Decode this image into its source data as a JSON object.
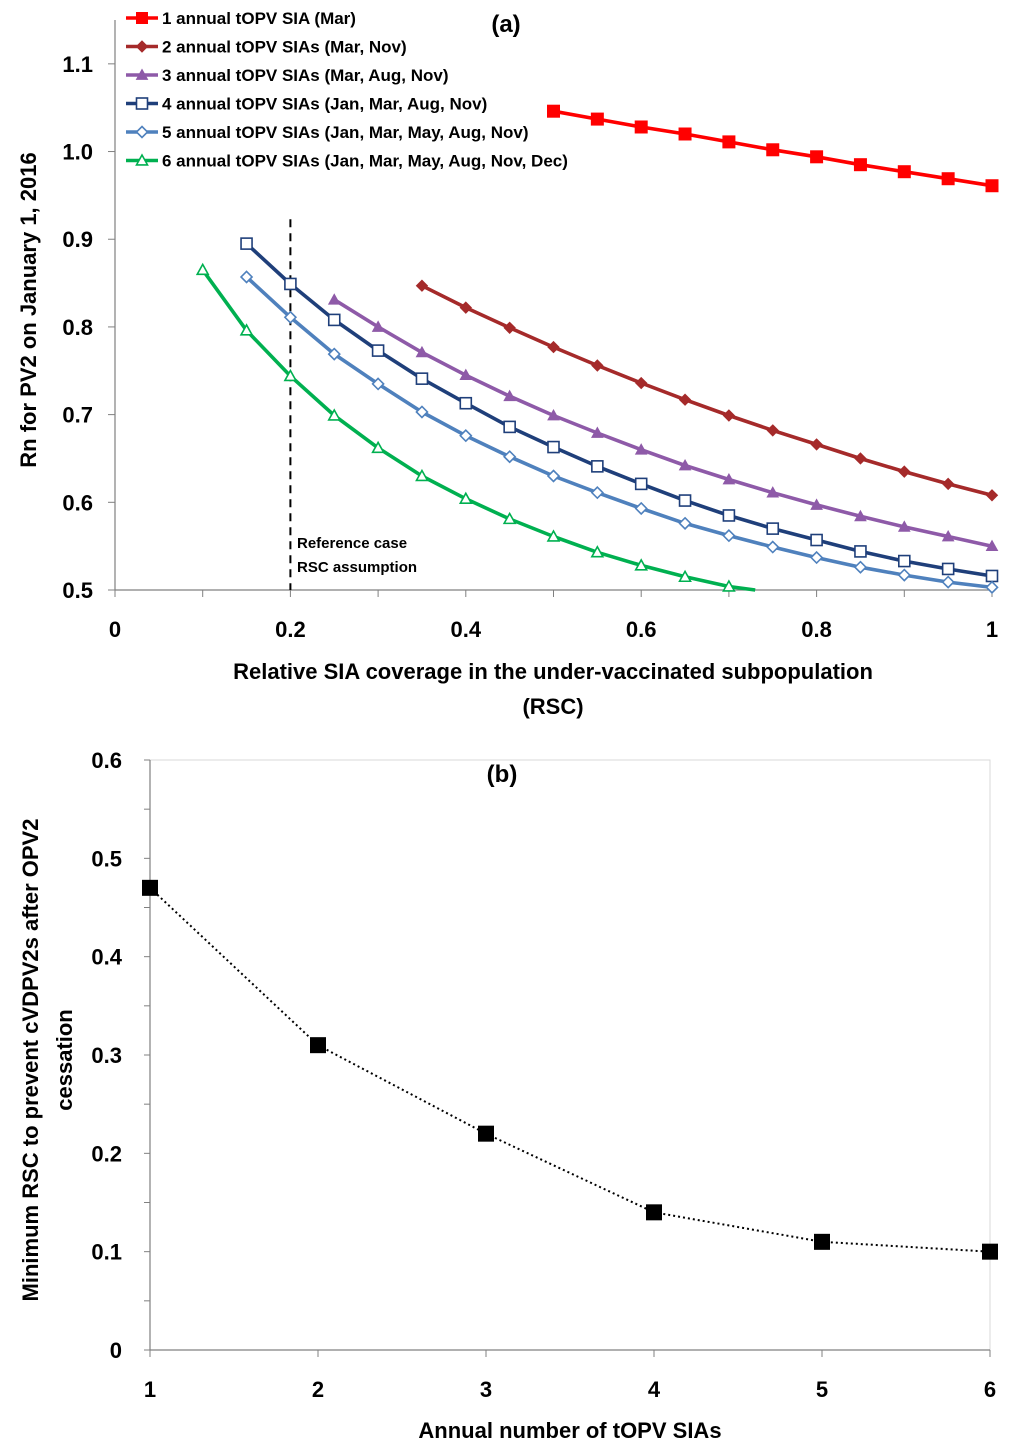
{
  "chart_data": [
    {
      "type": "line",
      "panel_label": "(a)",
      "xlabel_lines": [
        "Relative SIA coverage in the under-vaccinated subpopulation",
        "(RSC)"
      ],
      "ylabel": "Rn for PV2 on January 1, 2016",
      "xlim": [
        0,
        1
      ],
      "ylim": [
        0.5,
        1.15
      ],
      "x_ticks": [
        0,
        0.2,
        0.4,
        0.6,
        0.8,
        1
      ],
      "x_tick_labels": [
        "0",
        "0.2",
        "0.4",
        "0.6",
        "0.8",
        "1"
      ],
      "y_ticks": [
        0.5,
        0.6,
        0.7,
        0.8,
        0.9,
        1.0,
        1.1
      ],
      "y_tick_labels": [
        "0.5",
        "0.6",
        "0.7",
        "0.8",
        "0.9",
        "1.0",
        "1.1"
      ],
      "grid": false,
      "legend_position": "top-left",
      "annotation": {
        "x": 0.2,
        "lines": [
          "Reference case",
          "RSC assumption"
        ],
        "style": "dashed vertical line"
      },
      "series": [
        {
          "name": "1 annual tOPV SIA (Mar)",
          "color": "#ff0000",
          "marker": "filled-square",
          "x": [
            0.5,
            0.55,
            0.6,
            0.65,
            0.7,
            0.75,
            0.8,
            0.85,
            0.9,
            0.95,
            1.0
          ],
          "y": [
            1.046,
            1.037,
            1.028,
            1.02,
            1.011,
            1.002,
            0.994,
            0.985,
            0.977,
            0.969,
            0.961
          ]
        },
        {
          "name": "2 annual tOPV SIAs (Mar, Nov)",
          "color": "#a52a2a",
          "marker": "filled-diamond",
          "x": [
            0.35,
            0.4,
            0.45,
            0.5,
            0.55,
            0.6,
            0.65,
            0.7,
            0.75,
            0.8,
            0.85,
            0.9,
            0.95,
            1.0
          ],
          "y": [
            0.847,
            0.822,
            0.799,
            0.777,
            0.756,
            0.736,
            0.717,
            0.699,
            0.682,
            0.666,
            0.65,
            0.635,
            0.621,
            0.608
          ]
        },
        {
          "name": "3 annual tOPV SIAs (Mar, Aug, Nov)",
          "color": "#8e5aa8",
          "marker": "filled-triangle",
          "x": [
            0.25,
            0.3,
            0.35,
            0.4,
            0.45,
            0.5,
            0.55,
            0.6,
            0.65,
            0.7,
            0.75,
            0.8,
            0.85,
            0.9,
            0.95,
            1.0
          ],
          "y": [
            0.831,
            0.8,
            0.771,
            0.745,
            0.721,
            0.699,
            0.679,
            0.66,
            0.642,
            0.626,
            0.611,
            0.597,
            0.584,
            0.572,
            0.561,
            0.55
          ]
        },
        {
          "name": "4 annual tOPV SIAs (Jan, Mar, Aug, Nov)",
          "color": "#1f3f7a",
          "marker": "open-square",
          "x": [
            0.15,
            0.2,
            0.25,
            0.3,
            0.35,
            0.4,
            0.45,
            0.5,
            0.55,
            0.6,
            0.65,
            0.7,
            0.75,
            0.8,
            0.85,
            0.9,
            0.95,
            1.0
          ],
          "y": [
            0.895,
            0.849,
            0.808,
            0.773,
            0.741,
            0.713,
            0.686,
            0.663,
            0.641,
            0.621,
            0.602,
            0.585,
            0.57,
            0.557,
            0.544,
            0.533,
            0.524,
            0.516
          ]
        },
        {
          "name": "5 annual tOPV SIAs  (Jan, Mar, May, Aug, Nov)",
          "color": "#4f81bd",
          "marker": "open-diamond",
          "x": [
            0.15,
            0.2,
            0.25,
            0.3,
            0.35,
            0.4,
            0.45,
            0.5,
            0.55,
            0.6,
            0.65,
            0.7,
            0.75,
            0.8,
            0.85,
            0.9,
            0.95,
            1.0
          ],
          "y": [
            0.857,
            0.811,
            0.769,
            0.735,
            0.703,
            0.676,
            0.652,
            0.63,
            0.611,
            0.593,
            0.576,
            0.562,
            0.549,
            0.537,
            0.526,
            0.517,
            0.509,
            0.503
          ]
        },
        {
          "name": "6 annual tOPV SIAs (Jan, Mar, May, Aug, Nov, Dec)",
          "color": "#00b050",
          "marker": "open-triangle",
          "x": [
            0.1,
            0.15,
            0.2,
            0.25,
            0.3,
            0.35,
            0.4,
            0.45,
            0.5,
            0.55,
            0.6,
            0.65,
            0.7,
            0.73
          ],
          "y": [
            0.865,
            0.796,
            0.744,
            0.699,
            0.662,
            0.63,
            0.604,
            0.581,
            0.561,
            0.543,
            0.528,
            0.515,
            0.504,
            0.5
          ],
          "markers_count": 13
        }
      ]
    },
    {
      "type": "line",
      "panel_label": "(b)",
      "xlabel": "Annual number of tOPV SIAs",
      "ylabel_lines": [
        "Minimum RSC  to prevent cVDPV2s after OPV2",
        "cessation"
      ],
      "xlim": [
        1,
        6
      ],
      "ylim": [
        0,
        0.6
      ],
      "x_ticks": [
        1,
        2,
        3,
        4,
        5,
        6
      ],
      "x_tick_labels": [
        "1",
        "2",
        "3",
        "4",
        "5",
        "6"
      ],
      "y_ticks": [
        0,
        0.1,
        0.2,
        0.3,
        0.4,
        0.5,
        0.6
      ],
      "y_tick_labels": [
        "0",
        "0.1",
        "0.2",
        "0.3",
        "0.4",
        "0.5",
        "0.6"
      ],
      "grid": false,
      "series": [
        {
          "color": "#000000",
          "marker": "filled-square",
          "line_style": "dotted",
          "x": [
            1,
            2,
            3,
            4,
            5,
            6
          ],
          "y": [
            0.47,
            0.31,
            0.22,
            0.14,
            0.11,
            0.1
          ]
        }
      ]
    }
  ]
}
